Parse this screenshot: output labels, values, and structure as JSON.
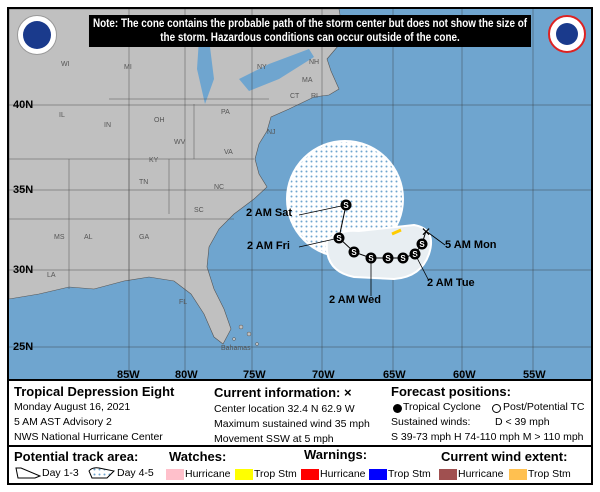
{
  "note": "Note: The cone contains the probable path of the storm center but does not show the size of the storm. Hazardous conditions can occur outside of the cone.",
  "logos": {
    "left": "NOAA",
    "right": "National Weather Service"
  },
  "map": {
    "latitudes": [
      "40N",
      "35N",
      "30N",
      "25N"
    ],
    "longitudes": [
      "85W",
      "80W",
      "75W",
      "70W",
      "65W",
      "60W",
      "55W"
    ],
    "states": [
      "WI",
      "MI",
      "NY",
      "NH",
      "MA",
      "CT",
      "RI",
      "PA",
      "IL",
      "IN",
      "OH",
      "NJ",
      "WV",
      "VA",
      "KY",
      "TN",
      "NC",
      "SC",
      "MS",
      "AL",
      "GA",
      "FL",
      "LA"
    ],
    "place": "Bahamas",
    "forecast_labels": {
      "sat": "2 AM Sat",
      "fri": "2 AM Fri",
      "wed": "2 AM Wed",
      "tue": "2 AM Tue",
      "mon": "5 AM Mon"
    },
    "point_letter": "S",
    "colors": {
      "ocean": "#6fa5cf",
      "land": "#c0c0c0",
      "cone": "#ffffff"
    }
  },
  "legend": {
    "storm_name": "Tropical Depression Eight",
    "date": "Monday August 16, 2021",
    "advisory": "5 AM AST Advisory 2",
    "center": "NWS National Hurricane Center",
    "current_title": "Current information: ×",
    "location": "Center location 32.4 N 62.9 W",
    "max_wind": "Maximum sustained wind 35 mph",
    "movement": "Movement SSW at 5 mph",
    "forecast_title": "Forecast positions:",
    "tropical_cyclone": "Tropical Cyclone",
    "post_tc": "Post/Potential TC",
    "sustained": "Sustained winds:",
    "d": "D < 39 mph",
    "shm": "S 39-73 mph  H 74-110 mph  M > 110 mph",
    "track_title": "Potential track area:",
    "day13": "Day 1-3",
    "day45": "Day 4-5",
    "watches_title": "Watches:",
    "warnings_title": "Warnings:",
    "wind_title": "Current wind extent:",
    "hurricane": "Hurricane",
    "tropstm": "Trop Stm",
    "colors": {
      "watch_hurricane": "#ffc0cb",
      "watch_ts": "#ffff00",
      "warn_hurricane": "#ff0000",
      "warn_ts": "#0000ff",
      "wind_hurricane": "#a05050",
      "wind_ts": "#ffc050"
    }
  }
}
